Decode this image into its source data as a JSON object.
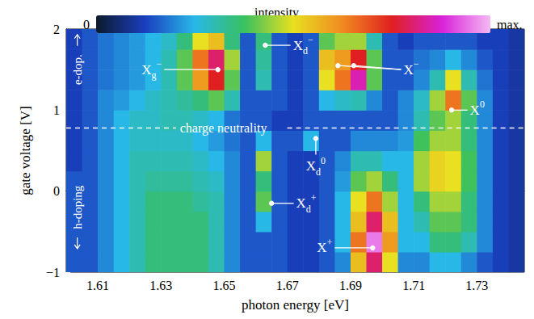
{
  "chart_data": {
    "type": "heatmap",
    "x_label": "photon energy [eV]",
    "y_label": "gate voltage [V]",
    "xlim": [
      1.6,
      1.745
    ],
    "ylim": [
      -1,
      2
    ],
    "xticks": [
      1.61,
      1.63,
      1.65,
      1.67,
      1.69,
      1.71,
      1.73
    ],
    "yticks": [
      {
        "value": -1,
        "label": "−1"
      },
      0,
      1,
      2
    ],
    "grid": false,
    "x_edges": [
      1.6,
      1.605,
      1.61,
      1.615,
      1.62,
      1.625,
      1.63,
      1.635,
      1.64,
      1.645,
      1.65,
      1.655,
      1.66,
      1.665,
      1.67,
      1.675,
      1.68,
      1.685,
      1.69,
      1.695,
      1.7,
      1.705,
      1.71,
      1.715,
      1.72,
      1.725,
      1.73,
      1.735,
      1.74,
      1.745
    ],
    "y_edges": [
      -1,
      -0.75,
      -0.5,
      -0.25,
      0,
      0.25,
      0.5,
      0.75,
      1,
      1.25,
      1.5,
      1.75,
      2
    ],
    "values": [
      [
        1.5,
        1.5,
        2,
        2.5,
        3,
        3.5,
        3.5,
        3.5,
        3.5,
        3,
        2,
        1.5,
        1.5,
        1.5,
        1.2,
        1.2,
        1.5,
        2,
        5.5,
        8,
        5,
        2,
        2,
        2.5,
        2.5,
        2,
        1.5,
        1.2,
        1
      ],
      [
        1.5,
        1.5,
        2,
        2.5,
        3,
        3.5,
        3.5,
        3.5,
        3.5,
        3,
        2,
        1.5,
        1.5,
        1.5,
        1.2,
        1.2,
        1.5,
        2.5,
        6.5,
        9.5,
        6,
        2.5,
        2.5,
        3.5,
        3.5,
        3,
        2,
        1.2,
        1
      ],
      [
        1.5,
        1.5,
        2,
        2.5,
        3,
        3.5,
        3.5,
        3.5,
        3.5,
        3,
        2,
        1.5,
        2.5,
        1.5,
        1.2,
        1.2,
        1.5,
        2.5,
        5.5,
        8,
        5.5,
        2.5,
        3,
        4,
        4,
        3.5,
        2,
        1.2,
        1
      ],
      [
        1.5,
        1.5,
        2,
        2.5,
        3,
        3.5,
        3.5,
        3.5,
        3.2,
        3,
        2,
        1.5,
        4,
        1.5,
        1.2,
        1.2,
        1.5,
        2.5,
        5,
        6.5,
        4.5,
        2.5,
        3.5,
        4.5,
        4.5,
        3.5,
        2,
        1.2,
        1
      ],
      [
        1.5,
        1.5,
        2,
        2.5,
        3,
        3.2,
        3.2,
        3.2,
        3,
        2.8,
        2,
        1.5,
        3.5,
        1.5,
        1.2,
        1.2,
        1.5,
        2.2,
        4,
        4.5,
        3.5,
        2.5,
        4.5,
        5.2,
        5,
        3.8,
        2,
        1.2,
        1
      ],
      [
        1.2,
        1.5,
        2,
        2.5,
        3,
        3,
        3,
        3,
        2.8,
        2.5,
        2,
        1.5,
        4.5,
        1.5,
        1.2,
        1.2,
        1.5,
        2,
        3,
        3,
        2.5,
        2.5,
        4.5,
        5.2,
        5,
        3.8,
        2,
        1.2,
        1
      ],
      [
        1.2,
        1.5,
        2,
        2.5,
        2.8,
        2.8,
        2.8,
        2.8,
        2.5,
        2.2,
        1.8,
        1.5,
        2.5,
        1.5,
        1.5,
        2.5,
        1.5,
        1.5,
        2,
        2,
        2,
        2.2,
        3.8,
        4.5,
        4.5,
        3.5,
        2,
        1.2,
        1
      ],
      [
        1.2,
        1.5,
        2,
        2.5,
        2.8,
        2.8,
        3,
        3,
        2.8,
        2.5,
        1.8,
        1.5,
        1.5,
        1.2,
        1.2,
        1.5,
        1.5,
        1.5,
        1.5,
        1.5,
        1.5,
        2,
        3,
        4,
        4.5,
        3.5,
        2,
        1.2,
        1
      ],
      [
        1.2,
        1.5,
        2,
        2.2,
        2.5,
        2.8,
        3,
        3.2,
        3.5,
        4,
        3,
        1.5,
        1.5,
        1.5,
        1.2,
        1.5,
        2.5,
        2.8,
        3,
        2,
        1.5,
        2,
        2.8,
        4.5,
        6.5,
        4,
        2,
        1.2,
        1
      ],
      [
        1.2,
        1.5,
        1.8,
        2,
        2.2,
        2.5,
        3,
        4,
        6,
        7.5,
        4,
        1.5,
        3,
        1.5,
        1.2,
        1.5,
        5,
        6.5,
        8.5,
        4,
        1.5,
        1.5,
        2,
        3,
        5,
        3,
        1.8,
        1.2,
        1
      ],
      [
        1.2,
        1.5,
        1.8,
        2,
        2.2,
        2.5,
        3,
        4,
        6.5,
        8,
        4.5,
        1.5,
        3.2,
        1.5,
        1.2,
        1.5,
        5.5,
        6,
        7.5,
        4,
        1.5,
        1.5,
        1.8,
        2,
        2.5,
        2,
        1.5,
        1.2,
        1
      ],
      [
        1.2,
        1.5,
        1.8,
        2,
        2.2,
        2.5,
        2.8,
        3.5,
        5,
        5.5,
        3.5,
        1.5,
        3.5,
        1.5,
        1.2,
        1.5,
        4,
        4.5,
        4.5,
        3,
        1.5,
        1.2,
        1.5,
        1.5,
        1.5,
        1.5,
        1.2,
        1.2,
        1
      ]
    ],
    "colorbar": {
      "label": "intensity",
      "range": [
        0,
        10
      ],
      "ticks": [
        {
          "value": 0,
          "label": "0"
        },
        {
          "value": 10,
          "label": "max."
        }
      ]
    },
    "annotations": [
      {
        "text": {
          "base": "X",
          "sub": "g",
          "sup": "−"
        },
        "points": [
          [
            1.648,
            1.5
          ]
        ],
        "text_at": [
          1.631,
          1.5
        ]
      },
      {
        "text": {
          "base": "X",
          "sub": "d",
          "sup": "−"
        },
        "points": [
          [
            1.663,
            1.8
          ]
        ],
        "text_at": [
          1.671,
          1.8
        ]
      },
      {
        "text": {
          "base": "X",
          "sup": "−"
        },
        "points": [
          [
            1.686,
            1.55
          ],
          [
            1.691,
            1.55
          ]
        ],
        "text_at": [
          1.706,
          1.5
        ]
      },
      {
        "text": {
          "base": "X",
          "sup": "0"
        },
        "points": [
          [
            1.722,
            1.0
          ]
        ],
        "text_at": [
          1.727,
          1.0
        ]
      },
      {
        "text": {
          "base": "X",
          "sub": "d",
          "sup": "0"
        },
        "points": [
          [
            1.679,
            0.65
          ]
        ],
        "text_at": [
          1.679,
          0.45
        ]
      },
      {
        "text": {
          "base": "X",
          "sub": "d",
          "sup": "+"
        },
        "points": [
          [
            1.665,
            -0.15
          ]
        ],
        "text_at": [
          1.672,
          -0.15
        ]
      },
      {
        "text": {
          "base": "X",
          "sup": "+"
        },
        "points": [
          [
            1.697,
            -0.7
          ]
        ],
        "text_at": [
          1.685,
          -0.7
        ]
      }
    ],
    "charge_neutrality": {
      "label": "charge neutrality",
      "y": 0.78,
      "text_at": [
        1.636,
        0.78
      ]
    },
    "doping_labels": [
      {
        "text": "h-doping",
        "at": [
          1.6035,
          -0.2
        ]
      },
      {
        "text": "e-dop.",
        "at": [
          1.6035,
          1.5
        ]
      }
    ]
  }
}
